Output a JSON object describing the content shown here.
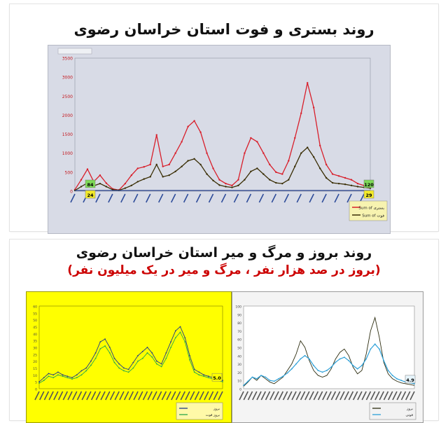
{
  "top": {
    "title": "روند بستری و فوت استان خراسان رضوی"
  },
  "bottom": {
    "title": "روند بروز و مرگ و میر استان خراسان رضوی",
    "subtitle": "(بروز در صد هزار نفر ، مرگ و میر در یک میلیون نفر)"
  },
  "colors": {
    "hosp": "#d81e2a",
    "death": "#3a2e05",
    "yellow_bg": "#ffff00",
    "chart1_bg": "#d8dbe6",
    "green": "#2aa84a",
    "blue": "#2da0d8"
  },
  "chart_data": [
    {
      "type": "line",
      "title": "",
      "ylim": [
        0,
        3500
      ],
      "yticks": [
        "0",
        "500",
        "1000",
        "1500",
        "2000",
        "2500",
        "3000",
        "3500"
      ],
      "legend": [
        "Sum of بستری",
        "Sum of فوت"
      ],
      "legend_position": "right",
      "series": [
        {
          "name": "Sum of بستری",
          "values": [
            40,
            300,
            580,
            250,
            420,
            210,
            60,
            30,
            200,
            420,
            600,
            640,
            700,
            1480,
            650,
            700,
            1000,
            1300,
            1700,
            1850,
            1550,
            1000,
            600,
            300,
            200,
            150,
            300,
            1000,
            1400,
            1300,
            1000,
            700,
            500,
            450,
            800,
            1400,
            2050,
            2850,
            2200,
            1200,
            700,
            450,
            400,
            350,
            300,
            200,
            150,
            120
          ]
        },
        {
          "name": "Sum of فوت",
          "values": [
            20,
            120,
            220,
            140,
            200,
            120,
            40,
            24,
            80,
            150,
            250,
            320,
            380,
            700,
            380,
            420,
            520,
            650,
            800,
            850,
            700,
            450,
            280,
            160,
            120,
            100,
            150,
            300,
            520,
            600,
            450,
            300,
            220,
            200,
            300,
            650,
            1000,
            1150,
            900,
            600,
            350,
            220,
            200,
            180,
            150,
            120,
            100,
            80
          ]
        }
      ],
      "callouts": {
        "start_left": "24",
        "start_right": "84",
        "end_left": "29",
        "end_right": "120"
      }
    },
    {
      "type": "line",
      "title": "",
      "ylim": [
        0,
        60
      ],
      "yticks": [
        "0",
        "5",
        "10",
        "15",
        "20",
        "25",
        "30",
        "35",
        "40",
        "45",
        "50",
        "55",
        "60"
      ],
      "legend": [
        "بروز",
        "بروز فوت"
      ],
      "legend_position": "right",
      "series": [
        {
          "name": "",
          "values": [
            5,
            8,
            11,
            10,
            12,
            10,
            9,
            8,
            10,
            13,
            15,
            20,
            26,
            34,
            36,
            30,
            22,
            18,
            15,
            14,
            19,
            24,
            27,
            30,
            26,
            20,
            18,
            26,
            34,
            42,
            45,
            37,
            24,
            14,
            12,
            10,
            9,
            8,
            7,
            6
          ]
        },
        {
          "name": "",
          "values": [
            4,
            6,
            9,
            8,
            10,
            9,
            8,
            7,
            8,
            10,
            13,
            17,
            22,
            29,
            31,
            26,
            19,
            15,
            13,
            12,
            15,
            20,
            22,
            26,
            23,
            18,
            16,
            22,
            30,
            37,
            41,
            34,
            21,
            12,
            10,
            9,
            8,
            7,
            6,
            5
          ]
        }
      ],
      "end_label": "5.0"
    },
    {
      "type": "line",
      "title": "",
      "ylim": [
        0,
        100
      ],
      "yticks": [
        "0",
        "10",
        "20",
        "30",
        "40",
        "50",
        "60",
        "70",
        "80",
        "90",
        "100"
      ],
      "legend": [
        "بروز",
        "فوتی"
      ],
      "legend_position": "right",
      "series": [
        {
          "name": "",
          "values": [
            3,
            8,
            14,
            10,
            16,
            12,
            8,
            6,
            10,
            14,
            22,
            30,
            42,
            58,
            50,
            34,
            22,
            16,
            14,
            16,
            24,
            36,
            44,
            48,
            40,
            26,
            18,
            22,
            42,
            70,
            86,
            62,
            32,
            18,
            12,
            9,
            7,
            6,
            5,
            4
          ]
        },
        {
          "name": "",
          "values": [
            4,
            9,
            14,
            12,
            16,
            14,
            10,
            9,
            12,
            15,
            19,
            24,
            30,
            36,
            40,
            36,
            28,
            22,
            20,
            22,
            26,
            32,
            36,
            38,
            34,
            28,
            24,
            28,
            36,
            48,
            54,
            48,
            34,
            22,
            16,
            12,
            10,
            8,
            7,
            6
          ]
        }
      ],
      "end_label": "4.9"
    }
  ]
}
